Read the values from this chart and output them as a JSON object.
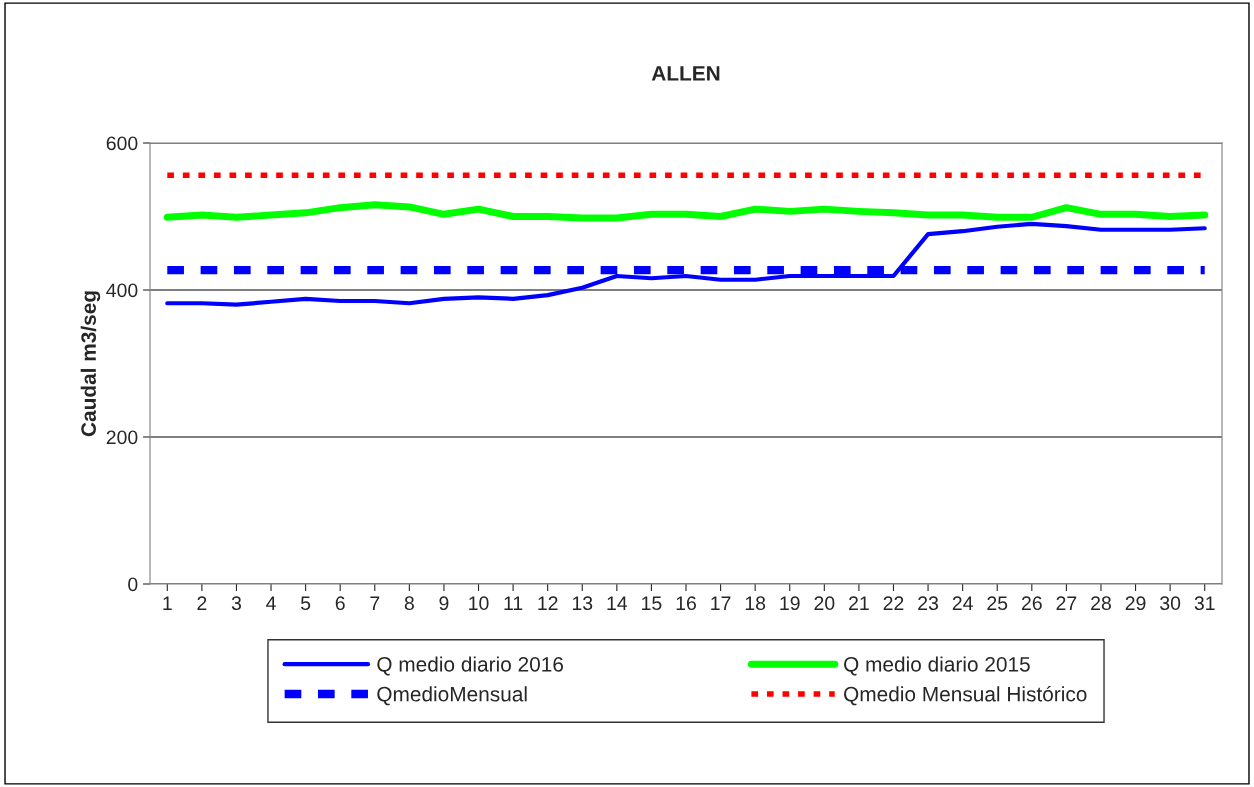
{
  "chart_data": {
    "type": "line",
    "title": "ALLEN",
    "ylabel": "Caudal m3/seg",
    "categories": [
      "1",
      "2",
      "3",
      "4",
      "5",
      "6",
      "7",
      "8",
      "9",
      "10",
      "11",
      "12",
      "13",
      "14",
      "15",
      "16",
      "17",
      "18",
      "19",
      "20",
      "21",
      "22",
      "23",
      "24",
      "25",
      "26",
      "27",
      "28",
      "29",
      "30",
      "31"
    ],
    "series": [
      {
        "name": "Q medio diario 2016",
        "color": "#0000ff",
        "line_style": "solid",
        "values": [
          382,
          382,
          380,
          384,
          388,
          385,
          385,
          382,
          388,
          390,
          388,
          393,
          403,
          419,
          416,
          419,
          414,
          414,
          419,
          419,
          419,
          419,
          476,
          480,
          486,
          490,
          487,
          482,
          482,
          482,
          484
        ]
      },
      {
        "name": "Q medio diario 2015",
        "color": "#00ff00",
        "line_style": "solid",
        "values": [
          499,
          502,
          499,
          502,
          505,
          512,
          516,
          513,
          503,
          510,
          500,
          500,
          498,
          498,
          503,
          503,
          500,
          510,
          507,
          510,
          507,
          505,
          502,
          502,
          499,
          499,
          512,
          503,
          503,
          500,
          502
        ]
      },
      {
        "name": "QmedioMensual",
        "color": "#0000ff",
        "line_style": "dashed",
        "values": [
          427,
          427,
          427,
          427,
          427,
          427,
          427,
          427,
          427,
          427,
          427,
          427,
          427,
          427,
          427,
          427,
          427,
          427,
          427,
          427,
          427,
          427,
          427,
          427,
          427,
          427,
          427,
          427,
          427,
          427,
          427
        ]
      },
      {
        "name": "Qmedio Mensual Histórico",
        "color": "#ff0000",
        "line_style": "dotted",
        "values": [
          556,
          556,
          556,
          556,
          556,
          556,
          556,
          556,
          556,
          556,
          556,
          556,
          556,
          556,
          556,
          556,
          556,
          556,
          556,
          556,
          556,
          556,
          556,
          556,
          556,
          556,
          556,
          556,
          556,
          556,
          556
        ]
      }
    ],
    "ylim": [
      0,
      600
    ],
    "yticks": [
      0,
      200,
      400,
      600
    ],
    "grid": "y",
    "legend": "bottom"
  }
}
